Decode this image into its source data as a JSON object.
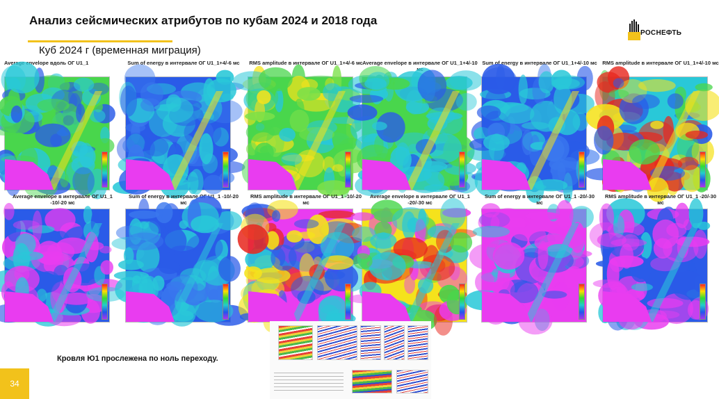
{
  "slide": {
    "title": "Анализ сейсмических атрибутов по кубам 2024 и 2018 года",
    "subtitle": "Куб 2024 г (временная миграция)",
    "note": "Кровля Ю1 прослежена по ноль переходу.",
    "page_number": "34",
    "logo_text": "РОСНЕФТЬ",
    "accent_color": "#f2c21b"
  },
  "panels_top": [
    {
      "title": "Average envelope вдоль ОГ U1_1",
      "palette": "green-blue"
    },
    {
      "title": "Sum of energy в интервале ОГ U1_1+4/-6 мс",
      "palette": "blue"
    },
    {
      "title": "RMS amplitude в интервале ОГ U1_1+4/-6 мс",
      "palette": "green"
    },
    {
      "title": "Average envelope в интервале ОГ U1_1+4/-10 мс",
      "palette": "green-blue"
    },
    {
      "title": "Sum of energy в интервале ОГ U1_1+4/-10 мс",
      "palette": "blue"
    },
    {
      "title": "RMS amplitude в интервале ОГ U1_1+4/-10 мс",
      "palette": "hot"
    }
  ],
  "panels_bottom": [
    {
      "title": "Average envelope в интервале ОГ U1_1 -10/-20 мс",
      "palette": "blue-mag"
    },
    {
      "title": "Sum of energy в интервале ОГ U1_1 -10/-20 мс",
      "palette": "blue"
    },
    {
      "title": "RMS amplitude в интервале ОГ U1_1 -10/-20 мс",
      "palette": "mag-hot"
    },
    {
      "title": "Average envelope в интервале ОГ U1_1 -20/-30 мс",
      "palette": "yellow-hot"
    },
    {
      "title": "Sum of energy в интервале ОГ U1_1 -20/-30 мс",
      "palette": "magenta"
    },
    {
      "title": "RMS amplitude в интервале ОГ U1_1 -20/-30 мс",
      "palette": "blue-mag"
    }
  ],
  "colors": {
    "magenta": "#e93cf0",
    "blue": "#2a5be8",
    "cyan": "#29c8d8",
    "green": "#49d64c",
    "yellow": "#f5e21c",
    "red": "#e8281e"
  }
}
